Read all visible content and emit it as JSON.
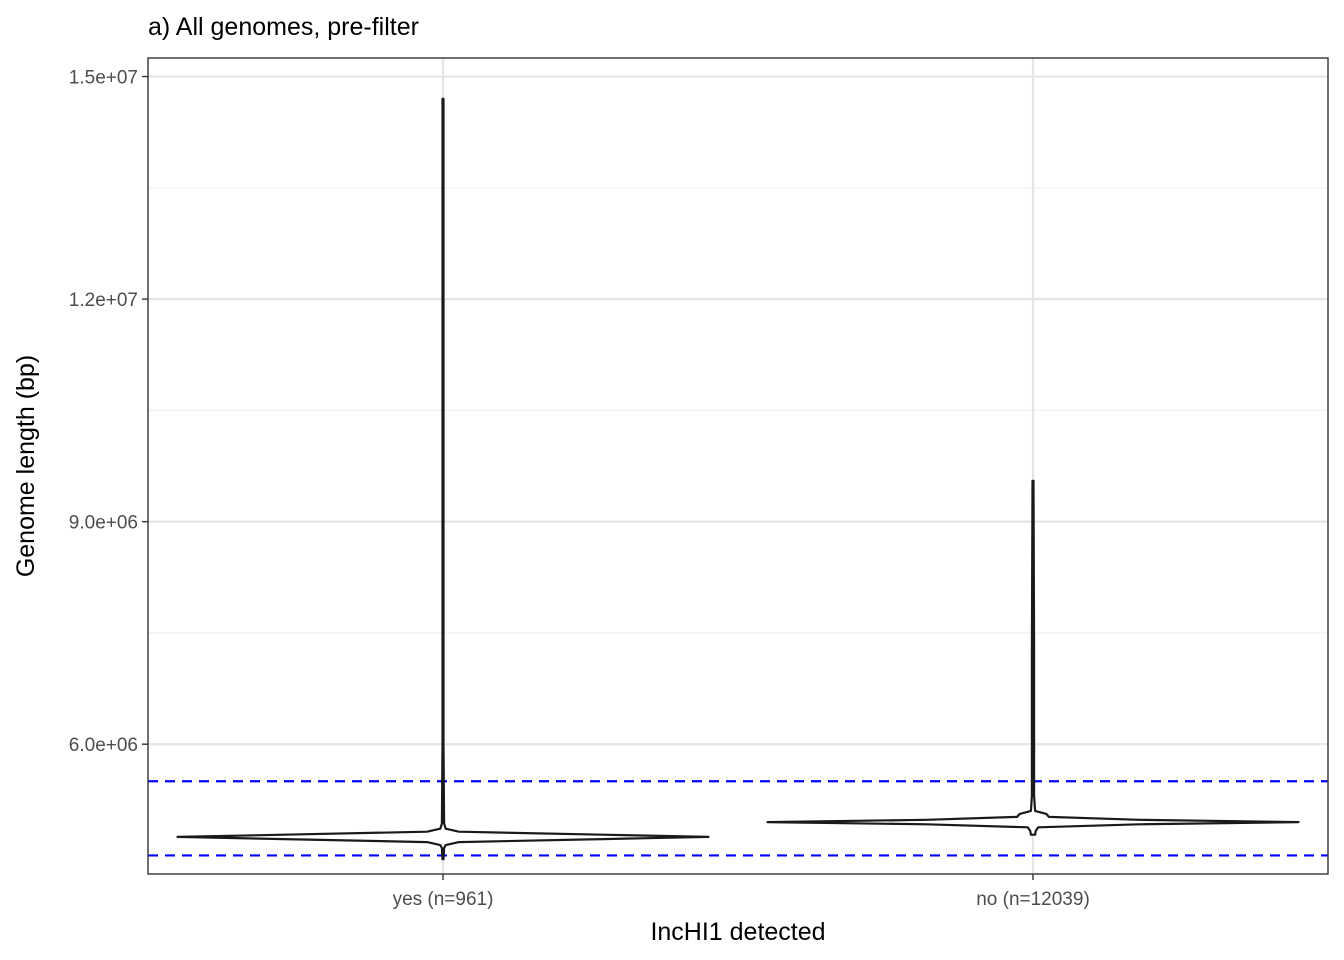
{
  "chart_data": {
    "type": "violin",
    "title": "a) All genomes, pre-filter",
    "xlabel": "IncHI1 detected",
    "ylabel": "Genome length (bp)",
    "ylim": [
      4250000,
      15250000
    ],
    "y_ticks": [
      {
        "value": 6000000,
        "label": "6.0e+06"
      },
      {
        "value": 9000000,
        "label": "9.0e+06"
      },
      {
        "value": 12000000,
        "label": "1.2e+07"
      },
      {
        "value": 15000000,
        "label": "1.5e+07"
      }
    ],
    "categories": [
      "yes (n=961)",
      "no (n=12039)"
    ],
    "series": [
      {
        "category": "yes (n=961)",
        "n": 961,
        "min": 4450000,
        "max": 14700000,
        "mode": 4750000,
        "profile": [
          {
            "y": 4450000,
            "w": 0.002
          },
          {
            "y": 4600000,
            "w": 0.004
          },
          {
            "y": 4640000,
            "w": 0.01
          },
          {
            "y": 4680000,
            "w": 0.06
          },
          {
            "y": 4720000,
            "w": 0.6
          },
          {
            "y": 4750000,
            "w": 1.0
          },
          {
            "y": 4780000,
            "w": 0.6
          },
          {
            "y": 4820000,
            "w": 0.06
          },
          {
            "y": 4860000,
            "w": 0.01
          },
          {
            "y": 4930000,
            "w": 0.004
          },
          {
            "y": 6000000,
            "w": 0.002
          },
          {
            "y": 14700000,
            "w": 0.002
          }
        ]
      },
      {
        "category": "no (n=12039)",
        "n": 12039,
        "min": 4780000,
        "max": 9550000,
        "mode": 4950000,
        "profile": [
          {
            "y": 4780000,
            "w": 0.008
          },
          {
            "y": 4830000,
            "w": 0.01
          },
          {
            "y": 4880000,
            "w": 0.02
          },
          {
            "y": 4920000,
            "w": 0.4
          },
          {
            "y": 4950000,
            "w": 1.0
          },
          {
            "y": 4980000,
            "w": 0.4
          },
          {
            "y": 5020000,
            "w": 0.06
          },
          {
            "y": 5060000,
            "w": 0.05
          },
          {
            "y": 5100000,
            "w": 0.008
          },
          {
            "y": 5300000,
            "w": 0.004
          },
          {
            "y": 7250000,
            "w": 0.004
          },
          {
            "y": 9550000,
            "w": 0.002
          }
        ]
      }
    ],
    "reference_lines": [
      {
        "y": 5500000,
        "style": "dashed",
        "color": "#0000ff"
      },
      {
        "y": 4500000,
        "style": "dashed",
        "color": "#0000ff"
      }
    ],
    "grid": true,
    "colors": {
      "violin_stroke": "#1a1a1a",
      "violin_fill": "#ffffff",
      "grid_major": "#e5e5e5",
      "grid_minor": "#f0f0f0",
      "panel_border": "#333333",
      "reference": "#0000ff"
    }
  }
}
